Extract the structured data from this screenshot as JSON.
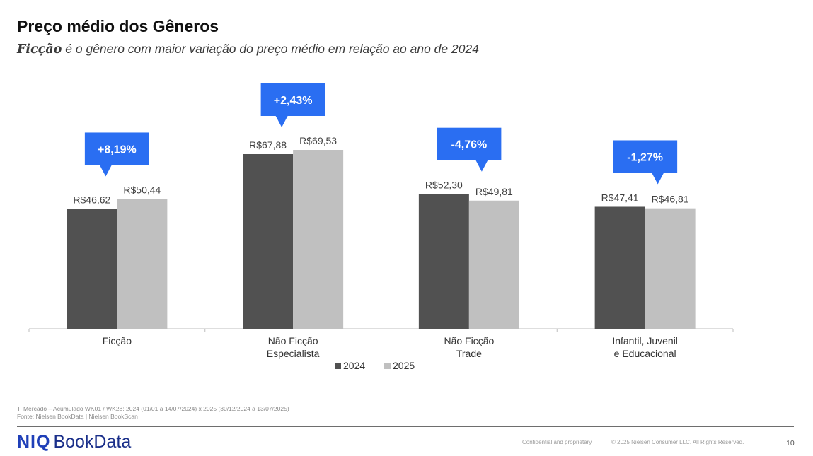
{
  "header": {
    "title": "Preço médio dos Gêneros",
    "subtitle_emph": "Ficção",
    "subtitle_rest": " é o gênero com maior variação do preço médio em relação ao ano de 2024"
  },
  "chart_data": {
    "type": "bar",
    "categories": [
      [
        "Ficção"
      ],
      [
        "Não Ficção",
        "Especialista"
      ],
      [
        "Não Ficção",
        "Trade"
      ],
      [
        "Infantil, Juvenil",
        "e Educacional"
      ]
    ],
    "series": [
      {
        "name": "2024",
        "color": "#515151",
        "values": [
          46.62,
          67.88,
          52.3,
          47.41
        ],
        "labels": [
          "R$46,62",
          "R$67,88",
          "R$52,30",
          "R$47,41"
        ]
      },
      {
        "name": "2025",
        "color": "#c0c0c0",
        "values": [
          50.44,
          69.53,
          49.81,
          46.81
        ],
        "labels": [
          "R$50,44",
          "R$69,53",
          "R$49,81",
          "R$46,81"
        ]
      }
    ],
    "variation": [
      "+8,19%",
      "+2,43%",
      "-4,76%",
      "-1,27%"
    ],
    "variation_color": "#2a6ef2",
    "ylim": [
      0,
      75
    ],
    "legend_placement": "bottom-center",
    "grid": false
  },
  "footer": {
    "note1": "T. Mercado – Acumulado WK01 / WK28: 2024 (01/01 a 14/07/2024) x 2025 (30/12/2024 a 13/07/2025)",
    "note2": "Fonte: Nielsen BookData | Nielsen BookScan",
    "logo_a": "NIQ",
    "logo_b": "BookData",
    "confidential": "Confidential and proprietary",
    "copyright": "© 2025 Nielsen Consumer LLC. All Rights Reserved.",
    "page": "10"
  }
}
